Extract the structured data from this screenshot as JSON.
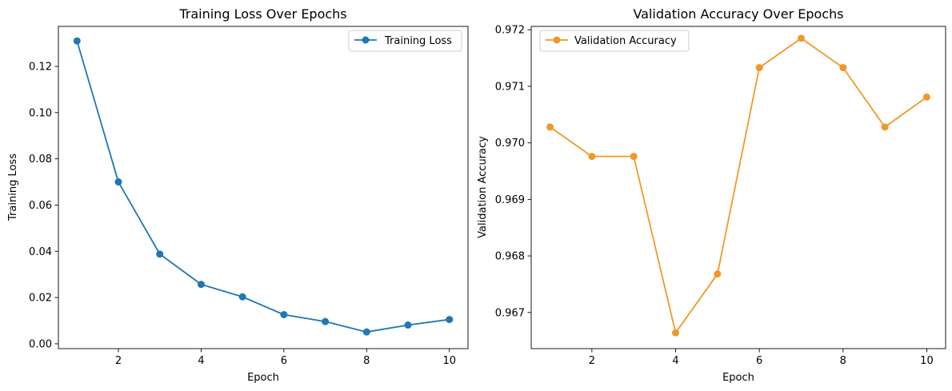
{
  "chart_data": [
    {
      "type": "line",
      "title": "Training Loss Over Epochs",
      "xlabel": "Epoch",
      "ylabel": "Training Loss",
      "xlim": [
        0.55,
        10.45
      ],
      "ylim": [
        -0.0021,
        0.1373
      ],
      "xticks": [
        2,
        4,
        6,
        8,
        10
      ],
      "yticks": [
        0.0,
        0.02,
        0.04,
        0.06,
        0.08,
        0.1,
        0.12
      ],
      "ytick_labels": [
        "0.00",
        "0.02",
        "0.04",
        "0.06",
        "0.08",
        "0.10",
        "0.12"
      ],
      "grid": false,
      "legend_position": "upper right",
      "series": [
        {
          "name": "Training Loss",
          "color": "#1f77b4",
          "marker": "circle",
          "x": [
            1,
            2,
            3,
            4,
            5,
            6,
            7,
            8,
            9,
            10
          ],
          "y": [
            0.131,
            0.07,
            0.0388,
            0.0257,
            0.0203,
            0.0126,
            0.0096,
            0.0051,
            0.0081,
            0.0105
          ]
        }
      ]
    },
    {
      "type": "line",
      "title": "Validation Accuracy Over Epochs",
      "xlabel": "Epoch",
      "ylabel": "Validation Accuracy",
      "xlim": [
        0.55,
        10.45
      ],
      "ylim": [
        0.96636,
        0.97206
      ],
      "xticks": [
        2,
        4,
        6,
        8,
        10
      ],
      "yticks": [
        0.967,
        0.968,
        0.969,
        0.97,
        0.971,
        0.972
      ],
      "ytick_labels": [
        "0.967",
        "0.968",
        "0.969",
        "0.970",
        "0.971",
        "0.972"
      ],
      "grid": false,
      "legend_position": "upper left",
      "series": [
        {
          "name": "Validation Accuracy",
          "color": "#f0982a",
          "marker": "circle",
          "x": [
            1,
            2,
            3,
            4,
            5,
            6,
            7,
            8,
            9,
            10
          ],
          "y": [
            0.97028,
            0.96976,
            0.96976,
            0.96664,
            0.96768,
            0.97133,
            0.97185,
            0.97133,
            0.97028,
            0.97081
          ]
        }
      ]
    }
  ]
}
